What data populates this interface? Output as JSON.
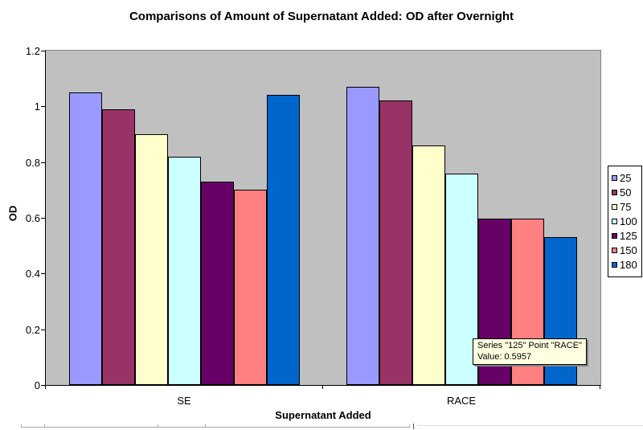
{
  "chart_data": {
    "type": "bar",
    "title": "Comparisons of Amount of Supernatant Added: OD after Overnight",
    "xlabel": "Supernatant Added",
    "ylabel": "OD",
    "ylim": [
      0,
      1.2
    ],
    "ytick_step": 0.2,
    "yticks": [
      "0",
      "0.2",
      "0.4",
      "0.6",
      "0.8",
      "1",
      "1.2"
    ],
    "categories": [
      "SE",
      "RACE"
    ],
    "grid": false,
    "legend_position": "right",
    "plot_bg_color": "#C0C0C0",
    "series": [
      {
        "name": "25",
        "color": "#9999FF",
        "values": [
          1.05,
          1.07
        ]
      },
      {
        "name": "50",
        "color": "#993366",
        "values": [
          0.99,
          1.02
        ]
      },
      {
        "name": "75",
        "color": "#FFFFCC",
        "values": [
          0.9,
          0.86
        ]
      },
      {
        "name": "100",
        "color": "#CCFFFF",
        "values": [
          0.82,
          0.76
        ]
      },
      {
        "name": "125",
        "color": "#660066",
        "values": [
          0.73,
          0.5957
        ]
      },
      {
        "name": "150",
        "color": "#FF8080",
        "values": [
          0.7,
          0.597
        ]
      },
      {
        "name": "180",
        "color": "#0066CC",
        "values": [
          1.04,
          0.53
        ]
      }
    ]
  },
  "tooltip": {
    "line1": "Series \"125\" Point \"RACE\"",
    "line2": "Value: 0.5957"
  }
}
